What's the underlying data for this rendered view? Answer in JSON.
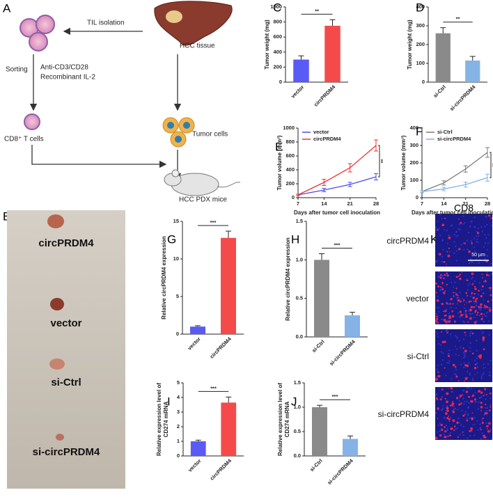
{
  "diagram": {
    "panel": "A",
    "til_isolation": "TIL isolation",
    "hcc_tissue": "HCC tissue",
    "sorting": "Sorting",
    "stimulation": [
      "Anti-CD3/CD28",
      "Recombinant IL-2"
    ],
    "tumor_cells": "Tumor cells",
    "t_cells": "CD8⁺ T cells",
    "mice": "HCC PDX mice"
  },
  "photo": {
    "panel": "B",
    "labels": [
      "circPRDM4",
      "vector",
      "si-Ctrl",
      "si-circPRDM4"
    ]
  },
  "imaging": {
    "panel": "K",
    "title": "CD8",
    "labels": [
      "circPRDM4",
      "vector",
      "si-Ctrl",
      "si-circPRDM4"
    ],
    "scale_bar": "50 μm"
  },
  "chart_data": [
    {
      "panel": "C",
      "type": "bar",
      "categories": [
        "vector",
        "circPRDM4"
      ],
      "values": [
        300,
        750
      ],
      "errors": [
        50,
        80
      ],
      "colors": [
        "#5a5af5",
        "#f54a4a"
      ],
      "ylim": [
        0,
        1000
      ],
      "yticks": [
        0,
        200,
        400,
        600,
        800,
        1000
      ],
      "ylabel": [
        "Tumor weight (mg)"
      ],
      "annotation": "**"
    },
    {
      "panel": "D",
      "type": "bar",
      "categories": [
        "si-Ctrl",
        "si-circPRDM4"
      ],
      "values": [
        260,
        115
      ],
      "errors": [
        30,
        22
      ],
      "colors": [
        "#8a8a8a",
        "#86b3e6"
      ],
      "ylim": [
        0,
        400
      ],
      "yticks": [
        0,
        100,
        200,
        300,
        400
      ],
      "ylabel": [
        "Tumor weight (mg)"
      ],
      "annotation": "**"
    },
    {
      "panel": "E",
      "type": "line",
      "x": [
        7,
        14,
        21,
        28
      ],
      "xlim": [
        7,
        28
      ],
      "xticks": [
        7,
        14,
        21,
        28
      ],
      "series": [
        {
          "name": "vector",
          "color": "#4a4af0",
          "values": [
            40,
            110,
            190,
            300
          ],
          "errors": [
            10,
            25,
            30,
            45
          ]
        },
        {
          "name": "circPRDM4",
          "color": "#f03030",
          "values": [
            40,
            220,
            430,
            750
          ],
          "errors": [
            10,
            45,
            60,
            80
          ]
        }
      ],
      "ylim": [
        0,
        1000
      ],
      "yticks": [
        0,
        200,
        400,
        600,
        800,
        1000
      ],
      "xlabel": "Days after tumor cell inoculation",
      "ylabel": [
        "Tumor volume (mm³)"
      ],
      "annotation": "**",
      "legend": "upper left"
    },
    {
      "panel": "F",
      "type": "line",
      "x": [
        7,
        14,
        21,
        28
      ],
      "xlim": [
        7,
        28
      ],
      "xticks": [
        7,
        14,
        21,
        28
      ],
      "series": [
        {
          "name": "si-Ctrl",
          "color": "#7a7a7a",
          "values": [
            35,
            85,
            165,
            260
          ],
          "errors": [
            5,
            12,
            18,
            28
          ]
        },
        {
          "name": "si-circPRDM4",
          "color": "#7fb0e3",
          "values": [
            35,
            50,
            75,
            115
          ],
          "errors": [
            5,
            10,
            14,
            20
          ]
        }
      ],
      "ylim": [
        0,
        400
      ],
      "yticks": [
        0,
        100,
        200,
        300,
        400
      ],
      "xlabel": "Days after tumor cell inoculation",
      "ylabel": [
        "Tumor volume (mm³)"
      ],
      "annotation": "**",
      "legend": "upper left"
    },
    {
      "panel": "G",
      "type": "bar",
      "categories": [
        "vector",
        "circPRDM4"
      ],
      "values": [
        1,
        12.8
      ],
      "errors": [
        0.12,
        0.9
      ],
      "colors": [
        "#5a5af5",
        "#f54a4a"
      ],
      "ylim": [
        0,
        15
      ],
      "yticks": [
        0,
        5,
        10,
        15
      ],
      "ylabel": [
        "Relative circPRDM4 expression"
      ],
      "annotation": "***"
    },
    {
      "panel": "H",
      "type": "bar",
      "categories": [
        "si-Ctrl",
        "si-circPRDM4"
      ],
      "values": [
        1.0,
        0.28
      ],
      "errors": [
        0.08,
        0.04
      ],
      "colors": [
        "#8a8a8a",
        "#86b3e6"
      ],
      "ylim": [
        0,
        1.5
      ],
      "yticks": [
        {
          "value": 0,
          "label": "0.0"
        },
        0.5,
        {
          "value": 1,
          "label": "1.0"
        },
        1.5
      ],
      "ylabel": [
        "Relative circPRDM4 expression"
      ],
      "annotation": "***"
    },
    {
      "panel": "I",
      "type": "bar",
      "categories": [
        "vector",
        "circPRDM4"
      ],
      "values": [
        1,
        3.65
      ],
      "errors": [
        0.08,
        0.38
      ],
      "colors": [
        "#5a5af5",
        "#f54a4a"
      ],
      "ylim": [
        0,
        5
      ],
      "yticks": [
        0,
        1,
        2,
        3,
        4,
        5
      ],
      "ylabel": [
        "Relative expression level of",
        "CD274 mRNA"
      ],
      "annotation": "***"
    },
    {
      "panel": "J",
      "type": "bar",
      "categories": [
        "si-Ctrl",
        "si-circPRDM4"
      ],
      "values": [
        1.0,
        0.35
      ],
      "errors": [
        0.04,
        0.06
      ],
      "colors": [
        "#8a8a8a",
        "#86b3e6"
      ],
      "ylim": [
        0,
        1.5
      ],
      "yticks": [
        {
          "value": 0,
          "label": "0.0"
        },
        0.5,
        {
          "value": 1,
          "label": "1.0"
        },
        1.5
      ],
      "ylabel": [
        "Relative expression level of",
        "CD274 mRNA"
      ],
      "annotation": "***"
    }
  ]
}
